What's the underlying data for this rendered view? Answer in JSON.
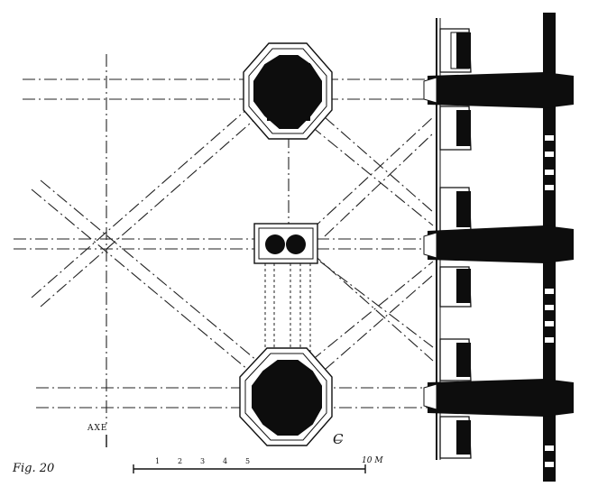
{
  "figure": {
    "label": "Fig. 20",
    "axis_label": "AXE",
    "centerline_mark": "C̶",
    "scale": {
      "tick_labels": [
        "1",
        "2",
        "3",
        "4",
        "5"
      ],
      "end_label": "10 M"
    }
  },
  "colors": {
    "ink": "#111111",
    "paper": "#ffffff"
  }
}
